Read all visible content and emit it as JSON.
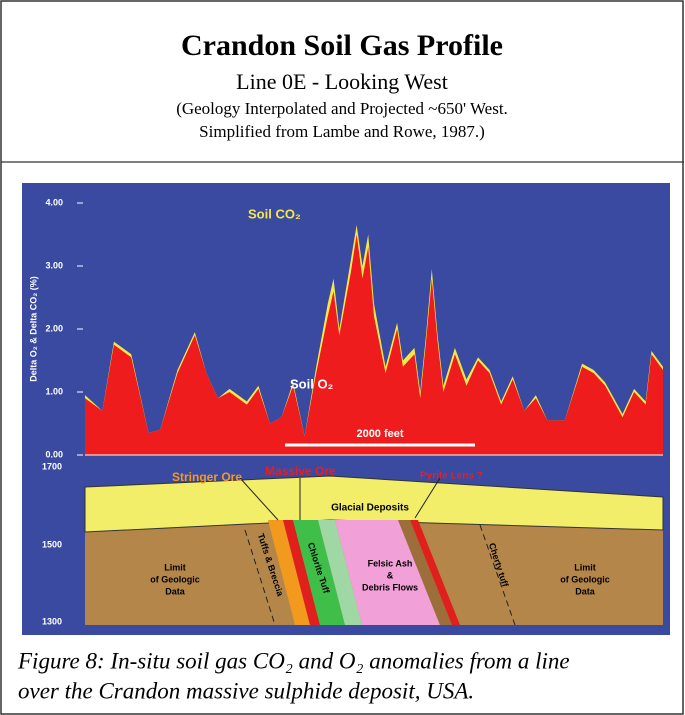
{
  "header": {
    "title": "Crandon Soil Gas Profile",
    "subtitle": "Line 0E - Looking West",
    "note_lines": [
      "(Geology Interpolated and Projected ~650' West.",
      "Simplified from Lambe and Rowe, 1987.)"
    ]
  },
  "chart_data": {
    "type": "area",
    "ylabel": "Delta O₂ & Delta CO₂ (%)",
    "x": [
      0,
      3,
      5,
      8,
      11,
      13,
      16,
      19,
      21,
      23,
      25,
      28,
      30,
      32,
      34,
      36,
      38,
      40,
      42,
      43,
      44,
      46,
      47,
      48,
      49,
      50,
      52,
      54,
      55,
      57,
      58,
      59,
      60,
      61,
      62,
      64,
      66,
      68,
      70,
      72,
      74,
      76,
      78,
      80,
      83,
      86,
      88,
      90,
      93,
      95,
      97,
      98,
      100
    ],
    "xlim": [
      0,
      100
    ],
    "series": [
      {
        "name": "Soil CO₂",
        "color": "#f4e84a",
        "values": [
          0.95,
          0.7,
          1.8,
          1.6,
          0.35,
          0.4,
          1.35,
          1.95,
          1.3,
          0.9,
          1.05,
          0.85,
          1.1,
          0.5,
          0.6,
          1.15,
          0.3,
          1.4,
          2.4,
          2.8,
          2.0,
          3.1,
          3.65,
          3.0,
          3.5,
          2.4,
          1.4,
          2.1,
          1.5,
          1.7,
          1.0,
          1.9,
          2.95,
          1.9,
          1.1,
          1.7,
          1.2,
          1.55,
          1.35,
          0.85,
          1.25,
          0.7,
          0.95,
          0.55,
          0.55,
          1.45,
          1.35,
          1.15,
          0.65,
          1.05,
          0.85,
          1.65,
          1.4
        ]
      },
      {
        "name": "Soil O₂",
        "color": "#ee1c1c",
        "values": [
          0.9,
          0.7,
          1.75,
          1.55,
          0.35,
          0.4,
          1.3,
          1.9,
          1.3,
          0.9,
          1.0,
          0.8,
          1.05,
          0.5,
          0.6,
          1.1,
          0.3,
          1.3,
          2.2,
          2.6,
          1.9,
          2.9,
          3.5,
          2.8,
          3.3,
          2.2,
          1.3,
          2.0,
          1.4,
          1.6,
          0.9,
          1.8,
          2.8,
          1.8,
          1.0,
          1.6,
          1.1,
          1.5,
          1.3,
          0.8,
          1.2,
          0.7,
          0.9,
          0.55,
          0.55,
          1.4,
          1.3,
          1.1,
          0.6,
          1.0,
          0.8,
          1.6,
          1.35
        ]
      }
    ],
    "ylim": [
      0,
      4
    ],
    "yticks": [
      {
        "value": 0,
        "label": "0.00"
      },
      {
        "value": 1,
        "label": "1.00"
      },
      {
        "value": 2,
        "label": "2.00"
      },
      {
        "value": 3,
        "label": "3.00"
      },
      {
        "value": 4,
        "label": "4.00"
      }
    ],
    "scale_bar": "2000 feet"
  },
  "section": {
    "elevations": [
      "1700",
      "1500",
      "1300"
    ],
    "labels": {
      "stringer": "Stringer Ore",
      "massive": "Massive Ore",
      "pyrite": "Pyrite Lens ?",
      "glacial": "Glacial Deposits",
      "limit_left": [
        "Limit",
        "of Geologic",
        "Data"
      ],
      "limit_right": [
        "Limit",
        "of Geologic",
        "Data"
      ],
      "felsic": [
        "Felsic Ash",
        "&",
        "Debris Flows"
      ],
      "chlorite": "Chlorite Tuff",
      "tuffs": "Tuffs & Breccia",
      "cherty": "Cherty tuff"
    }
  },
  "caption": [
    "Figure 8: In-situ soil gas CO₂ and O₂ anomalies from a line",
    "over the Crandon massive sulphide deposit, USA."
  ]
}
